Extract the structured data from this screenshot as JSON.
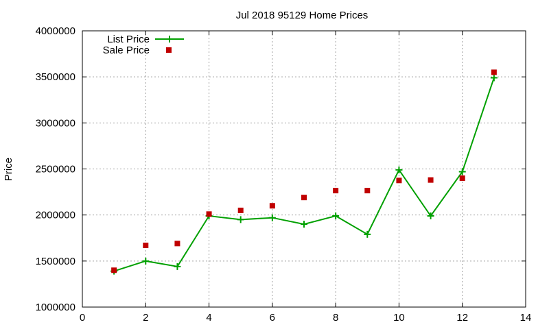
{
  "chart_data": {
    "type": "line",
    "title": "Jul 2018 95129 Home Prices",
    "xlabel": "",
    "ylabel": "Price",
    "xlim": [
      0,
      14
    ],
    "ylim": [
      1000000,
      4000000
    ],
    "x_ticks": [
      0,
      2,
      4,
      6,
      8,
      10,
      12,
      14
    ],
    "y_ticks": [
      1000000,
      1500000,
      2000000,
      2500000,
      3000000,
      3500000,
      4000000
    ],
    "grid": true,
    "legend_position": "top-left",
    "series": [
      {
        "name": "List Price",
        "style": "line-with-plus-markers",
        "color": "#00a000",
        "x": [
          1,
          2,
          3,
          4,
          5,
          6,
          7,
          8,
          9,
          10,
          11,
          12,
          13
        ],
        "values": [
          1390000,
          1500000,
          1440000,
          1990000,
          1950000,
          1970000,
          1900000,
          1990000,
          1790000,
          2490000,
          1990000,
          2470000,
          3490000
        ]
      },
      {
        "name": "Sale Price",
        "style": "square-markers",
        "color": "#c00000",
        "x": [
          1,
          2,
          3,
          4,
          5,
          6,
          7,
          8,
          9,
          10,
          11,
          12,
          13
        ],
        "values": [
          1400000,
          1670000,
          1690000,
          2010000,
          2050000,
          2100000,
          2190000,
          2265000,
          2265000,
          2375000,
          2380000,
          2400000,
          3550000
        ]
      }
    ]
  }
}
